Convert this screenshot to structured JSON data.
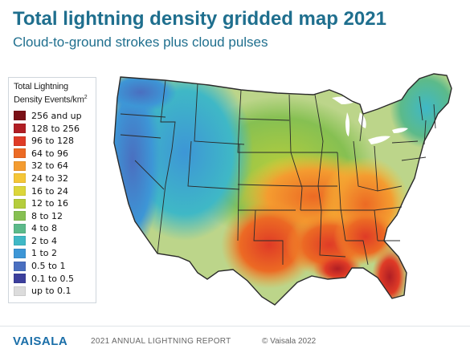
{
  "header": {
    "title": "Total lightning density gridded map 2021",
    "subtitle": "Cloud-to-ground strokes plus cloud pulses"
  },
  "legend": {
    "title_line1": "Total Lightning",
    "title_line2": "Density Events/km",
    "title_sup": "2",
    "items": [
      {
        "label": "256 and up",
        "color": "#7a1016"
      },
      {
        "label": "128 to 256",
        "color": "#b01e24"
      },
      {
        "label": "96 to 128",
        "color": "#df3b26"
      },
      {
        "label": "64 to 96",
        "color": "#ec6a24"
      },
      {
        "label": "32 to 64",
        "color": "#f49c30"
      },
      {
        "label": "24 to 32",
        "color": "#f5c637"
      },
      {
        "label": "16 to 24",
        "color": "#dcd63a"
      },
      {
        "label": "12 to 16",
        "color": "#b5cd3c"
      },
      {
        "label": "8 to 12",
        "color": "#86c052"
      },
      {
        "label": "4 to 8",
        "color": "#5cba8a"
      },
      {
        "label": "2 to 4",
        "color": "#3fb8c6"
      },
      {
        "label": "1 to 2",
        "color": "#3d96d6"
      },
      {
        "label": "0.5 to 1",
        "color": "#4a6fc0"
      },
      {
        "label": "0.1 to 0.5",
        "color": "#3c3f9c"
      },
      {
        "label": "up to 0.1",
        "color": "#dcdcdc"
      }
    ]
  },
  "map": {
    "land_color": "#bcd58a",
    "state_border_color": "#2a2a2a",
    "background_color": "#ffffff"
  },
  "footer": {
    "brand": "VAISALA",
    "report": "2021 ANNUAL LIGHTNING REPORT",
    "copyright": "© Vaisala 2022"
  }
}
